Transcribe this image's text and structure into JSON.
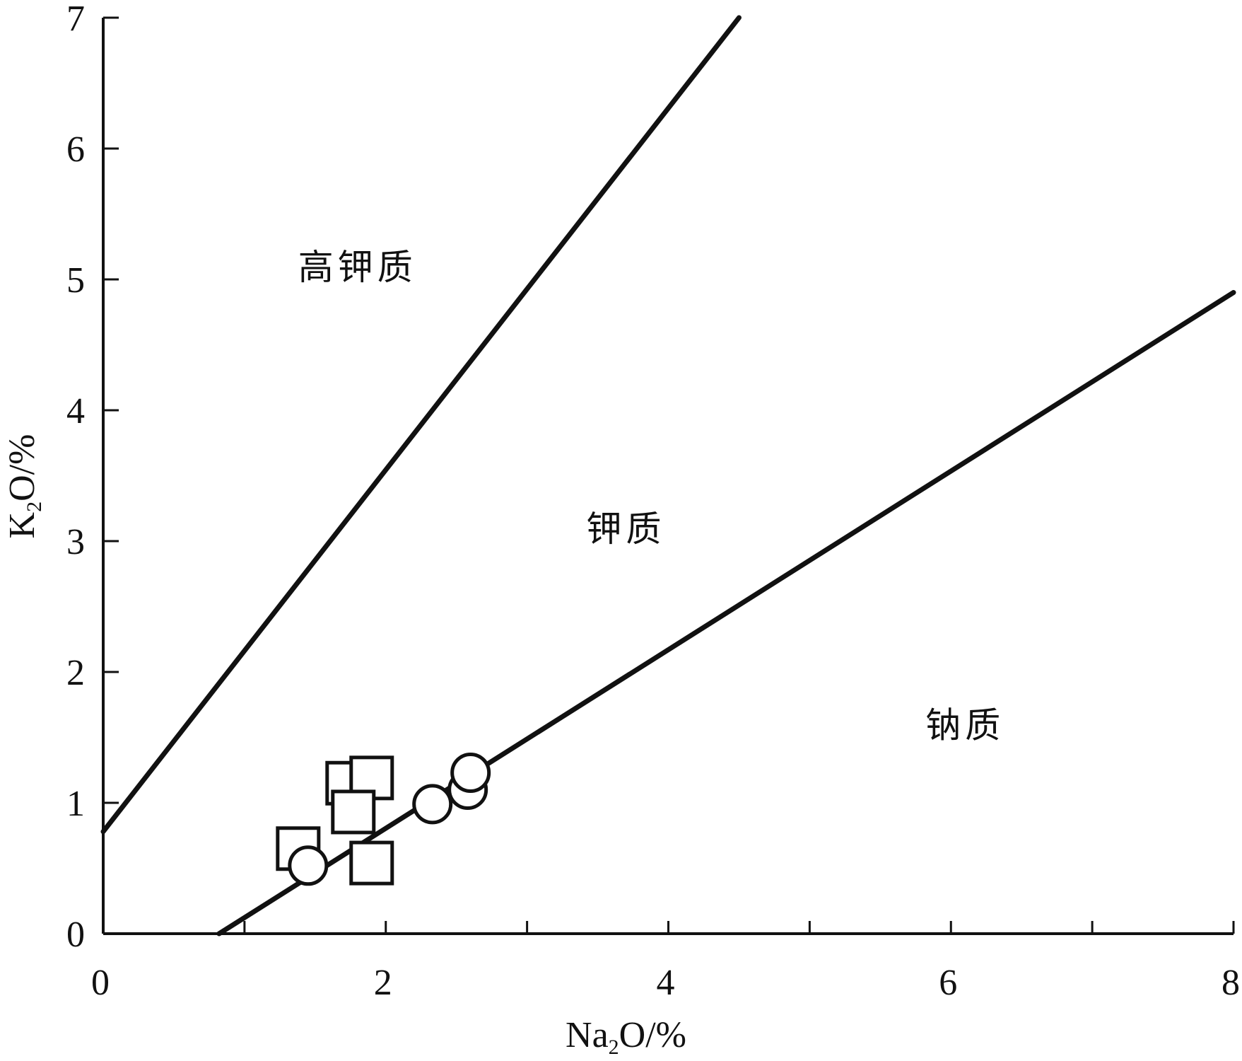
{
  "chart_data": {
    "type": "scatter",
    "xlabel": {
      "main": "Na",
      "sub": "2",
      "rest": "O/%"
    },
    "ylabel": {
      "main": "K",
      "sub": "2",
      "rest": "O/%"
    },
    "xlim": [
      0,
      8
    ],
    "ylim": [
      0,
      7
    ],
    "x_ticks": [
      0,
      2,
      4,
      6,
      8
    ],
    "x_minor_ticks": [
      1,
      3,
      5,
      7
    ],
    "y_ticks": [
      0,
      1,
      2,
      3,
      4,
      5,
      6,
      7
    ],
    "grid": false,
    "boundary_lines": [
      {
        "points": [
          [
            0,
            0.78
          ],
          [
            4.5,
            7.0
          ]
        ]
      },
      {
        "points": [
          [
            0.82,
            0.0
          ],
          [
            8.0,
            4.9
          ]
        ]
      }
    ],
    "region_labels": [
      {
        "text": "高钾质",
        "x": 1.8,
        "y": 5.0
      },
      {
        "text": "钾质",
        "x": 3.7,
        "y": 3.0
      },
      {
        "text": "钠质",
        "x": 6.1,
        "y": 1.5
      }
    ],
    "series": [
      {
        "marker": "square",
        "points": [
          [
            1.38,
            0.65
          ],
          [
            1.73,
            1.15
          ],
          [
            1.9,
            1.19
          ],
          [
            1.77,
            0.93
          ],
          [
            1.9,
            0.54
          ]
        ]
      },
      {
        "marker": "circle",
        "points": [
          [
            1.45,
            0.52
          ],
          [
            2.33,
            0.99
          ],
          [
            2.58,
            1.1
          ],
          [
            2.6,
            1.23
          ]
        ]
      }
    ]
  }
}
